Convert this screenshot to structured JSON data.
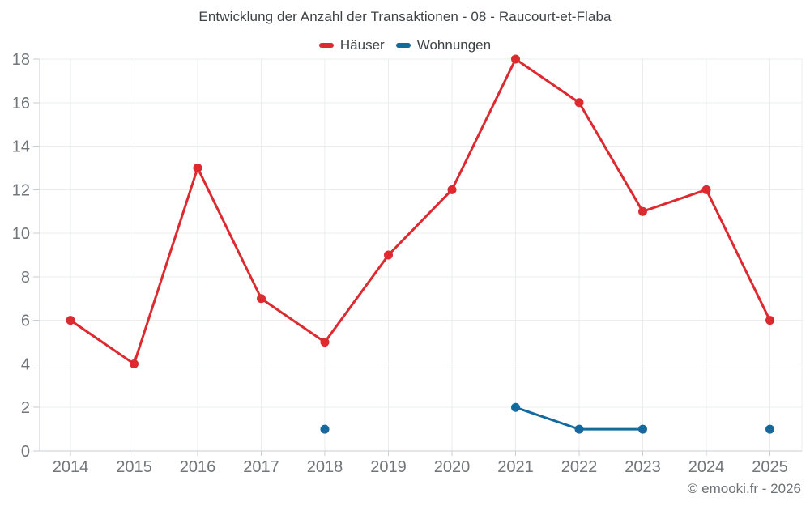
{
  "chart_data": {
    "type": "line",
    "title": "Entwicklung der Anzahl der Transaktionen - 08 - Raucourt-et-Flaba",
    "categories": [
      "2014",
      "2015",
      "2016",
      "2017",
      "2018",
      "2019",
      "2020",
      "2021",
      "2022",
      "2023",
      "2024",
      "2025"
    ],
    "series": [
      {
        "name": "Häuser",
        "color": "#dc2a30",
        "values": [
          6,
          4,
          13,
          7,
          5,
          9,
          12,
          18,
          16,
          11,
          12,
          6
        ]
      },
      {
        "name": "Wohnungen",
        "color": "#16699e",
        "values": [
          null,
          null,
          null,
          null,
          1,
          null,
          null,
          2,
          1,
          1,
          null,
          1
        ]
      }
    ],
    "xlabel": "",
    "ylabel": "",
    "ylim": [
      0,
      18
    ],
    "yticks": [
      0,
      2,
      4,
      6,
      8,
      10,
      12,
      14,
      16,
      18
    ],
    "grid": true,
    "legend_position": "top",
    "marker": "circle"
  },
  "footer": {
    "credit": "© emooki.fr - 2026"
  },
  "colors": {
    "background": "#ffffff",
    "grid": "#ebeced",
    "axis": "#c9ced2",
    "tick_label": "#71767b",
    "title_text": "#3e4347",
    "footer_text": "#6d7277"
  }
}
